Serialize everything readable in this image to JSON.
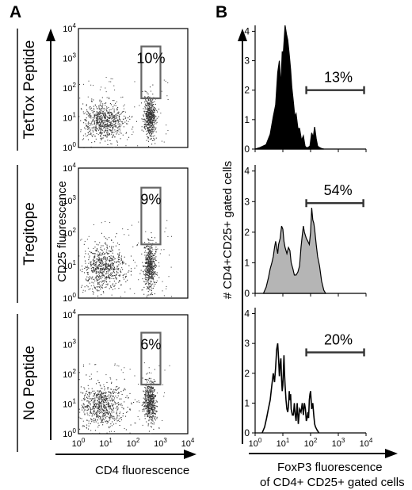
{
  "panel_labels": {
    "a": "A",
    "b": "B"
  },
  "row_labels": [
    "TetTox Peptide",
    "Tregitope",
    "No Peptide"
  ],
  "colors": {
    "histogram_fill_tettox": "#000000",
    "histogram_fill_tregitope": "#b5b5b5",
    "gate": "#666666",
    "dots": "#333333"
  },
  "chart_data": [
    {
      "type": "scatter",
      "panel": "A",
      "xlabel": "CD4 fluorescence",
      "ylabel": "CD25 fluorescence",
      "x_scale": "log",
      "y_scale": "log",
      "xlim": [
        1,
        10000
      ],
      "ylim": [
        1,
        10000
      ],
      "x_ticks": [
        {
          "base": "10",
          "exp": "0"
        },
        {
          "base": "10",
          "exp": "1"
        },
        {
          "base": "10",
          "exp": "2"
        },
        {
          "base": "10",
          "exp": "3"
        },
        {
          "base": "10",
          "exp": "4"
        }
      ],
      "y_ticks": [
        {
          "base": "10",
          "exp": "0"
        },
        {
          "base": "10",
          "exp": "1"
        },
        {
          "base": "10",
          "exp": "2"
        },
        {
          "base": "10",
          "exp": "3"
        },
        {
          "base": "10",
          "exp": "4"
        }
      ],
      "plots": [
        {
          "condition": "TetTox Peptide",
          "gate_label": "10%",
          "gate_x": [
            200,
            1000
          ],
          "gate_y": [
            45,
            2500
          ],
          "populations": [
            {
              "x": 8,
              "y": 8,
              "spread": 0.9
            },
            {
              "x": 400,
              "y": 10,
              "spread": 0.65
            }
          ]
        },
        {
          "condition": "Tregitope",
          "gate_label": "9%",
          "gate_x": [
            200,
            1000
          ],
          "gate_y": [
            45,
            2500
          ],
          "populations": [
            {
              "x": 8,
              "y": 9,
              "spread": 0.9
            },
            {
              "x": 400,
              "y": 10,
              "spread": 0.65
            }
          ]
        },
        {
          "condition": "No Peptide",
          "gate_label": "6%",
          "gate_x": [
            200,
            1000
          ],
          "gate_y": [
            45,
            2500
          ],
          "populations": [
            {
              "x": 7,
              "y": 9,
              "spread": 0.95
            },
            {
              "x": 400,
              "y": 12,
              "spread": 0.65
            }
          ]
        }
      ]
    },
    {
      "type": "area",
      "panel": "B",
      "xlabel_line1": "FoxP3 fluorescence",
      "xlabel_line2": "of CD4+ CD25+ gated cells",
      "ylabel": "# CD4+CD25+ gated cells",
      "x_scale": "log",
      "xlim": [
        1,
        10000
      ],
      "ylim": [
        0,
        4.2
      ],
      "x_ticks": [
        {
          "base": "10",
          "exp": "0"
        },
        {
          "base": "10",
          "exp": "1"
        },
        {
          "base": "10",
          "exp": "2"
        },
        {
          "base": "10",
          "exp": "3"
        },
        {
          "base": "10",
          "exp": "4"
        }
      ],
      "y_ticks": [
        "0",
        "1",
        "2",
        "3",
        "4"
      ],
      "histograms": [
        {
          "condition": "TetTox Peptide",
          "fill": "#000000",
          "marker_label": "13%",
          "marker_range": [
            70,
            8500
          ],
          "x": [
            1,
            1.5,
            2.5,
            3.5,
            4.5,
            5.5,
            6.5,
            7.5,
            8.5,
            9.5,
            10.5,
            12,
            13.5,
            15,
            17,
            19,
            21,
            24,
            27,
            30,
            35,
            40,
            47,
            55,
            63,
            70,
            80,
            95,
            110,
            125,
            140,
            160,
            180,
            210,
            250,
            300
          ],
          "y": [
            0,
            0.05,
            0.15,
            0.5,
            1.1,
            1.5,
            2.6,
            3.0,
            2.1,
            3.3,
            3.3,
            4.2,
            3.9,
            3.7,
            3.2,
            2.7,
            2.1,
            1.6,
            1.1,
            1.2,
            0.7,
            0.7,
            0.3,
            0.45,
            0.1,
            0.05,
            0.05,
            0.1,
            0.55,
            0.4,
            0.75,
            0.35,
            0.1,
            0.05,
            0.02,
            0
          ]
        },
        {
          "condition": "Tregitope",
          "fill": "#b5b5b5",
          "marker_label": "54%",
          "marker_range": [
            70,
            8000
          ],
          "x": [
            2,
            2.5,
            3,
            3.5,
            4,
            4.5,
            5,
            5.5,
            6,
            6.5,
            7,
            8,
            9,
            10,
            11,
            12,
            14,
            16,
            18,
            20,
            23,
            26,
            30,
            35,
            40,
            45,
            50,
            55,
            60,
            70,
            80,
            90,
            100,
            110,
            120,
            130,
            140,
            160,
            180,
            210,
            250,
            300,
            350
          ],
          "y": [
            0,
            0.2,
            0.5,
            0.8,
            1.0,
            1.2,
            1.5,
            1.7,
            1.5,
            1.3,
            1.6,
            1.8,
            2.2,
            2.1,
            1.7,
            1.5,
            1.3,
            1.5,
            1.4,
            1.0,
            0.8,
            0.6,
            0.6,
            0.7,
            0.9,
            1.5,
            1.9,
            2.2,
            2.0,
            1.8,
            1.7,
            1.6,
            2.0,
            2.8,
            2.4,
            2.3,
            2.1,
            1.6,
            1.2,
            0.9,
            0.4,
            0.1,
            0
          ]
        },
        {
          "condition": "No Peptide",
          "fill": "none",
          "marker_label": "20%",
          "marker_range": [
            70,
            8500
          ],
          "x": [
            1.8,
            2.2,
            2.6,
            3,
            3.5,
            4,
            4.5,
            5,
            5.5,
            6,
            6.5,
            7,
            7.5,
            8,
            8.5,
            9,
            9.5,
            10,
            10.5,
            11,
            11.5,
            12,
            13,
            14,
            15,
            16,
            17,
            18,
            19,
            20,
            22,
            24,
            26,
            28,
            30,
            33,
            36,
            40,
            45,
            50,
            55,
            60,
            65,
            70,
            75,
            80,
            85,
            90,
            95,
            100,
            110,
            120,
            130,
            140,
            150,
            170,
            200
          ],
          "y": [
            0,
            0.2,
            0.5,
            0.8,
            1.1,
            1.6,
            2.0,
            1.7,
            2.2,
            2.8,
            3.0,
            2.5,
            1.9,
            2.3,
            2.5,
            1.8,
            1.4,
            1.6,
            2.1,
            2.6,
            2.0,
            1.6,
            1.1,
            0.8,
            0.7,
            0.9,
            1.4,
            1.1,
            1.3,
            0.8,
            0.6,
            0.6,
            1.0,
            0.6,
            0.4,
            1.0,
            0.3,
            0.8,
            0.7,
            1.0,
            0.6,
            1.0,
            0.8,
            0.4,
            0.5,
            0.7,
            0.5,
            1.1,
            1.3,
            1.4,
            0.8,
            1.0,
            0.6,
            0.3,
            0.2,
            0.1,
            0
          ]
        }
      ]
    }
  ]
}
